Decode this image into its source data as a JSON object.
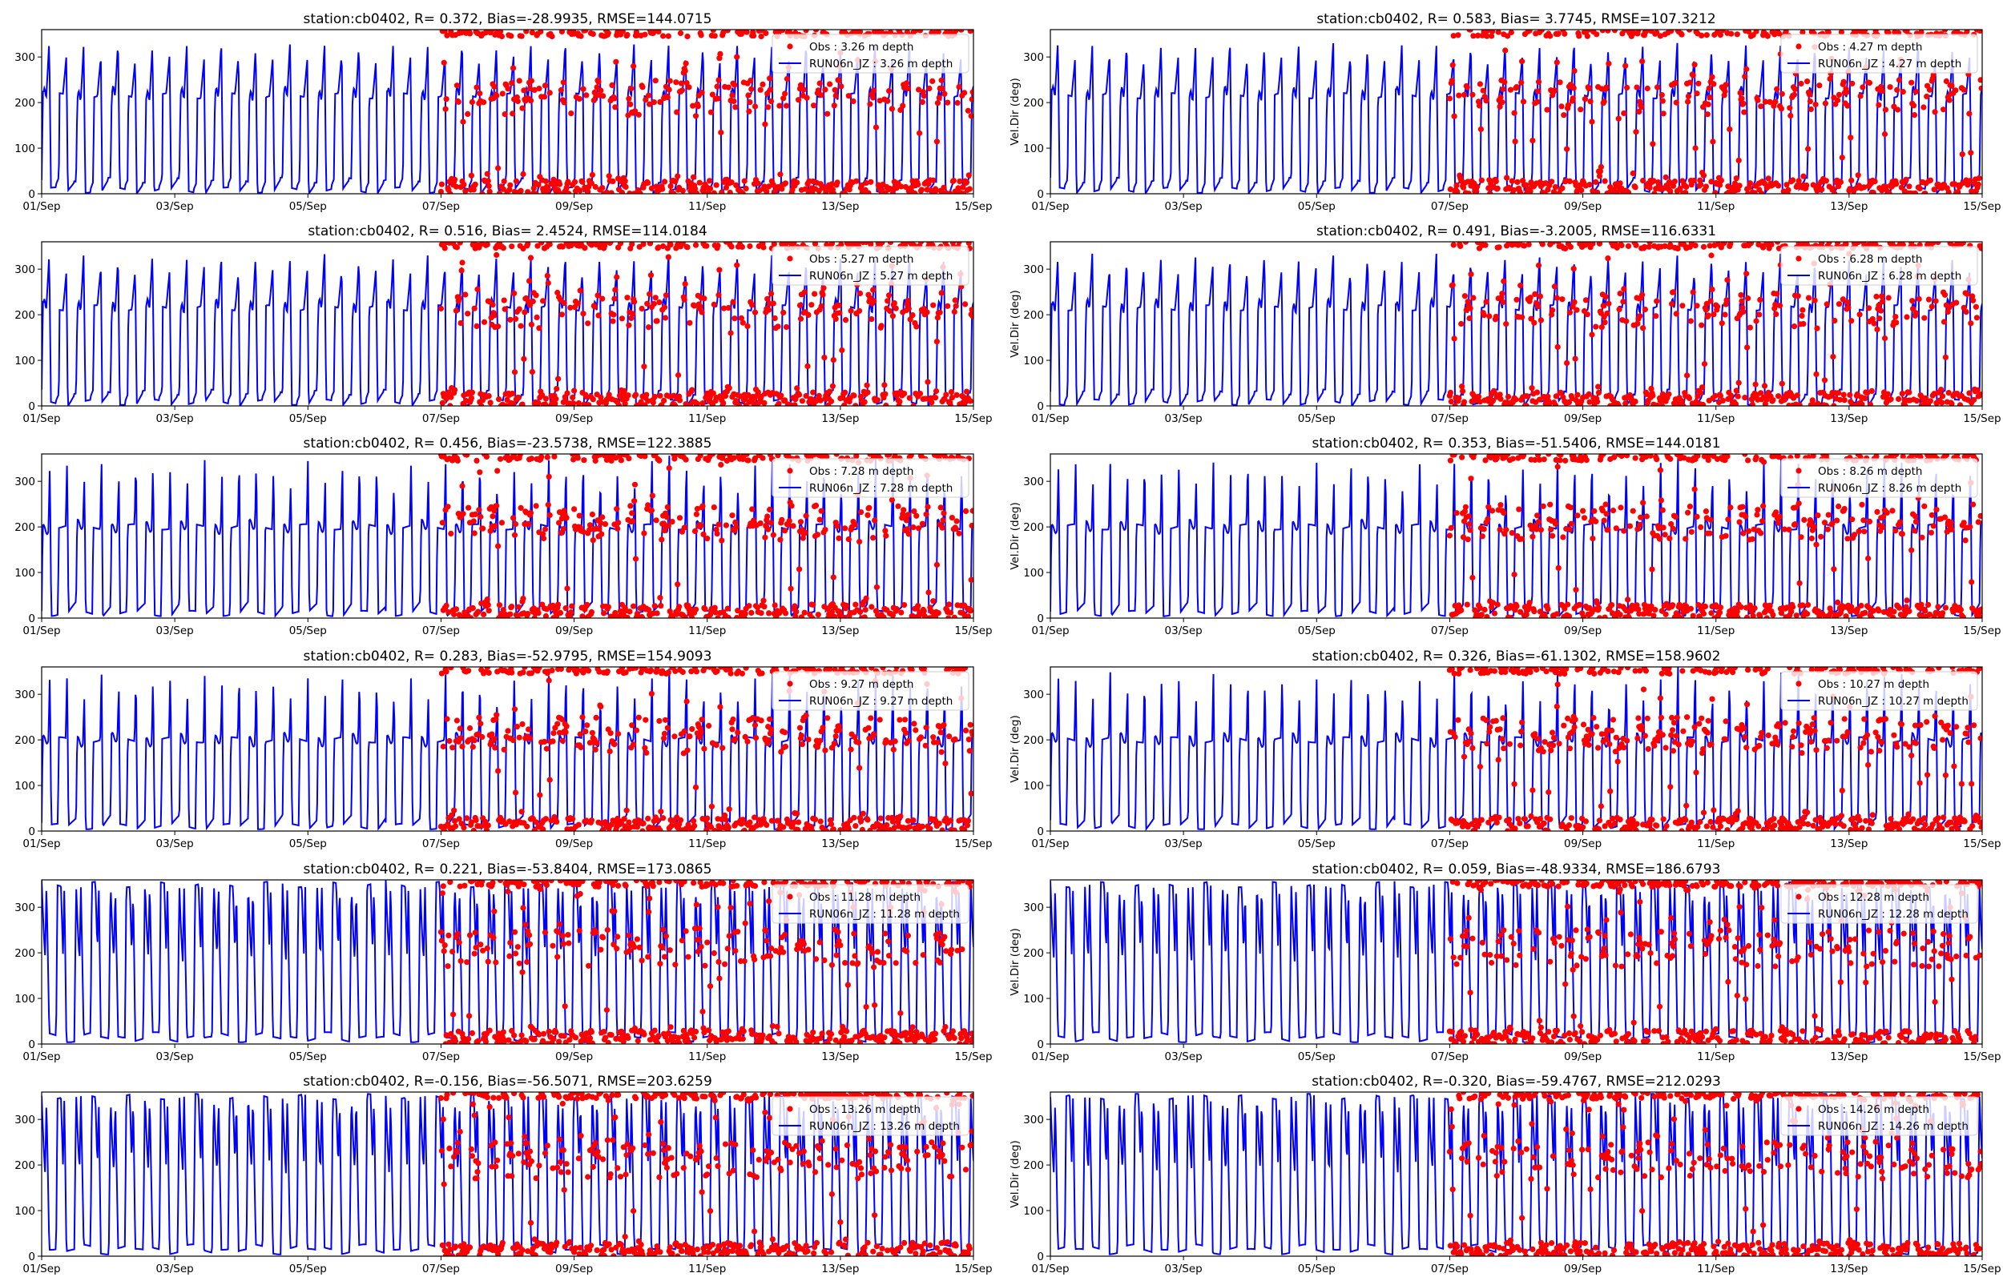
{
  "chart_data": [
    {
      "type": "line",
      "title": "station:cb0402, R= 0.372, Bias=-28.9935, RMSE=144.0715",
      "ylabel": "",
      "ylim": [
        0,
        360
      ],
      "yticks": [
        0,
        100,
        200,
        300
      ],
      "x_ticks": [
        "01/Sep",
        "03/Sep",
        "05/Sep",
        "07/Sep",
        "09/Sep",
        "11/Sep",
        "13/Sep",
        "15/Sep"
      ],
      "xlim_days": [
        0,
        14
      ],
      "obs_start_day": 6.0,
      "series": [
        {
          "name": "Obs : 3.26 m depth",
          "style": "red dots"
        },
        {
          "name": "RUN06n_JZ : 3.26 m depth",
          "style": "blue line"
        }
      ],
      "mode": 1
    },
    {
      "type": "line",
      "title": "station:cb0402, R= 0.583, Bias= 3.7745, RMSE=107.3212",
      "ylabel": "Vel.Dir (deg)",
      "ylim": [
        0,
        360
      ],
      "yticks": [
        0,
        100,
        200,
        300
      ],
      "x_ticks": [
        "01/Sep",
        "03/Sep",
        "05/Sep",
        "07/Sep",
        "09/Sep",
        "11/Sep",
        "13/Sep",
        "15/Sep"
      ],
      "xlim_days": [
        0,
        14
      ],
      "obs_start_day": 6.0,
      "series": [
        {
          "name": "Obs : 4.27 m depth",
          "style": "red dots"
        },
        {
          "name": "RUN06n_JZ : 4.27 m depth",
          "style": "blue line"
        }
      ],
      "mode": 1
    },
    {
      "type": "line",
      "title": "station:cb0402, R= 0.516, Bias= 2.4524, RMSE=114.0184",
      "ylabel": "",
      "ylim": [
        0,
        360
      ],
      "yticks": [
        0,
        100,
        200,
        300
      ],
      "x_ticks": [
        "01/Sep",
        "03/Sep",
        "05/Sep",
        "07/Sep",
        "09/Sep",
        "11/Sep",
        "13/Sep",
        "15/Sep"
      ],
      "xlim_days": [
        0,
        14
      ],
      "obs_start_day": 6.0,
      "series": [
        {
          "name": "Obs : 5.27 m depth",
          "style": "red dots"
        },
        {
          "name": "RUN06n_JZ : 5.27 m depth",
          "style": "blue line"
        }
      ],
      "mode": 1
    },
    {
      "type": "line",
      "title": "station:cb0402, R= 0.491, Bias=-3.2005, RMSE=116.6331",
      "ylabel": "Vel.Dir (deg)",
      "ylim": [
        0,
        360
      ],
      "yticks": [
        0,
        100,
        200,
        300
      ],
      "x_ticks": [
        "01/Sep",
        "03/Sep",
        "05/Sep",
        "07/Sep",
        "09/Sep",
        "11/Sep",
        "13/Sep",
        "15/Sep"
      ],
      "xlim_days": [
        0,
        14
      ],
      "obs_start_day": 6.0,
      "series": [
        {
          "name": "Obs : 6.28 m depth",
          "style": "red dots"
        },
        {
          "name": "RUN06n_JZ : 6.28 m depth",
          "style": "blue line"
        }
      ],
      "mode": 1
    },
    {
      "type": "line",
      "title": "station:cb0402, R= 0.456, Bias=-23.5738, RMSE=122.3885",
      "ylabel": "",
      "ylim": [
        0,
        360
      ],
      "yticks": [
        0,
        100,
        200,
        300
      ],
      "x_ticks": [
        "01/Sep",
        "03/Sep",
        "05/Sep",
        "07/Sep",
        "09/Sep",
        "11/Sep",
        "13/Sep",
        "15/Sep"
      ],
      "xlim_days": [
        0,
        14
      ],
      "obs_start_day": 6.0,
      "series": [
        {
          "name": "Obs : 7.28 m depth",
          "style": "red dots"
        },
        {
          "name": "RUN06n_JZ : 7.28 m depth",
          "style": "blue line"
        }
      ],
      "mode": 2
    },
    {
      "type": "line",
      "title": "station:cb0402, R= 0.353, Bias=-51.5406, RMSE=144.0181",
      "ylabel": "Vel.Dir (deg)",
      "ylim": [
        0,
        360
      ],
      "yticks": [
        0,
        100,
        200,
        300
      ],
      "x_ticks": [
        "01/Sep",
        "03/Sep",
        "05/Sep",
        "07/Sep",
        "09/Sep",
        "11/Sep",
        "13/Sep",
        "15/Sep"
      ],
      "xlim_days": [
        0,
        14
      ],
      "obs_start_day": 6.0,
      "series": [
        {
          "name": "Obs : 8.26 m depth",
          "style": "red dots"
        },
        {
          "name": "RUN06n_JZ : 8.26 m depth",
          "style": "blue line"
        }
      ],
      "mode": 2
    },
    {
      "type": "line",
      "title": "station:cb0402, R= 0.283, Bias=-52.9795, RMSE=154.9093",
      "ylabel": "",
      "ylim": [
        0,
        360
      ],
      "yticks": [
        0,
        100,
        200,
        300
      ],
      "x_ticks": [
        "01/Sep",
        "03/Sep",
        "05/Sep",
        "07/Sep",
        "09/Sep",
        "11/Sep",
        "13/Sep",
        "15/Sep"
      ],
      "xlim_days": [
        0,
        14
      ],
      "obs_start_day": 6.0,
      "series": [
        {
          "name": "Obs : 9.27 m depth",
          "style": "red dots"
        },
        {
          "name": "RUN06n_JZ : 9.27 m depth",
          "style": "blue line"
        }
      ],
      "mode": 2
    },
    {
      "type": "line",
      "title": "station:cb0402, R= 0.326, Bias=-61.1302, RMSE=158.9602",
      "ylabel": "Vel.Dir (deg)",
      "ylim": [
        0,
        360
      ],
      "yticks": [
        0,
        100,
        200,
        300
      ],
      "x_ticks": [
        "01/Sep",
        "03/Sep",
        "05/Sep",
        "07/Sep",
        "09/Sep",
        "11/Sep",
        "13/Sep",
        "15/Sep"
      ],
      "xlim_days": [
        0,
        14
      ],
      "obs_start_day": 6.0,
      "series": [
        {
          "name": "Obs : 10.27 m depth",
          "style": "red dots"
        },
        {
          "name": "RUN06n_JZ : 10.27 m depth",
          "style": "blue line"
        }
      ],
      "mode": 2
    },
    {
      "type": "line",
      "title": "station:cb0402, R= 0.221, Bias=-53.8404, RMSE=173.0865",
      "ylabel": "",
      "ylim": [
        0,
        360
      ],
      "yticks": [
        0,
        100,
        200,
        300
      ],
      "x_ticks": [
        "01/Sep",
        "03/Sep",
        "05/Sep",
        "07/Sep",
        "09/Sep",
        "11/Sep",
        "13/Sep",
        "15/Sep"
      ],
      "xlim_days": [
        0,
        14
      ],
      "obs_start_day": 6.0,
      "series": [
        {
          "name": "Obs : 11.28 m depth",
          "style": "red dots"
        },
        {
          "name": "RUN06n_JZ : 11.28 m depth",
          "style": "blue line"
        }
      ],
      "mode": 3
    },
    {
      "type": "line",
      "title": "station:cb0402, R= 0.059, Bias=-48.9334, RMSE=186.6793",
      "ylabel": "Vel.Dir (deg)",
      "ylim": [
        0,
        360
      ],
      "yticks": [
        0,
        100,
        200,
        300
      ],
      "x_ticks": [
        "01/Sep",
        "03/Sep",
        "05/Sep",
        "07/Sep",
        "09/Sep",
        "11/Sep",
        "13/Sep",
        "15/Sep"
      ],
      "xlim_days": [
        0,
        14
      ],
      "obs_start_day": 6.0,
      "series": [
        {
          "name": "Obs : 12.28 m depth",
          "style": "red dots"
        },
        {
          "name": "RUN06n_JZ : 12.28 m depth",
          "style": "blue line"
        }
      ],
      "mode": 3
    },
    {
      "type": "line",
      "title": "station:cb0402, R=-0.156, Bias=-56.5071, RMSE=203.6259",
      "ylabel": "",
      "ylim": [
        0,
        360
      ],
      "yticks": [
        0,
        100,
        200,
        300
      ],
      "x_ticks": [
        "01/Sep",
        "03/Sep",
        "05/Sep",
        "07/Sep",
        "09/Sep",
        "11/Sep",
        "13/Sep",
        "15/Sep"
      ],
      "xlim_days": [
        0,
        14
      ],
      "obs_start_day": 6.0,
      "series": [
        {
          "name": "Obs : 13.26 m depth",
          "style": "red dots"
        },
        {
          "name": "RUN06n_JZ : 13.26 m depth",
          "style": "blue line"
        }
      ],
      "mode": 3
    },
    {
      "type": "line",
      "title": "station:cb0402, R=-0.320, Bias=-59.4767, RMSE=212.0293",
      "ylabel": "Vel.Dir (deg)",
      "ylim": [
        0,
        360
      ],
      "yticks": [
        0,
        100,
        200,
        300
      ],
      "x_ticks": [
        "01/Sep",
        "03/Sep",
        "05/Sep",
        "07/Sep",
        "09/Sep",
        "11/Sep",
        "13/Sep",
        "15/Sep"
      ],
      "xlim_days": [
        0,
        14
      ],
      "obs_start_day": 6.0,
      "series": [
        {
          "name": "Obs : 14.26 m depth",
          "style": "red dots"
        },
        {
          "name": "RUN06n_JZ : 14.26 m depth",
          "style": "blue line"
        }
      ],
      "mode": 3
    }
  ],
  "colors": {
    "obs": "#ff0000",
    "model": "#0000ff",
    "axis": "#000000",
    "background": "#ffffff"
  }
}
